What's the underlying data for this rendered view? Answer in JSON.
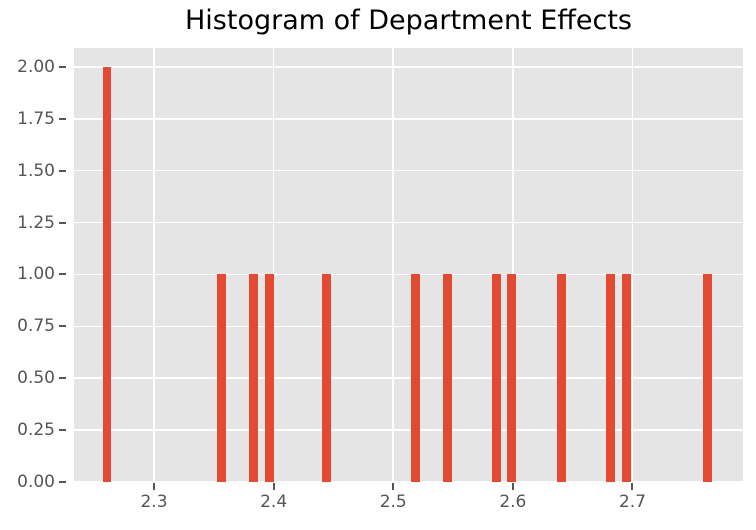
{
  "title": "Histogram of Department Effects",
  "colors": {
    "bar": "#E24A33",
    "plot_background": "#E5E5E5",
    "gridline": "#FFFFFF",
    "tick_text": "#555555",
    "tick_mark": "#555555",
    "title_text": "#000000",
    "figure_background": "#FFFFFF"
  },
  "chart_data": {
    "type": "bar",
    "subtype": "histogram",
    "title": "Histogram of Department Effects",
    "xlabel": "",
    "ylabel": "",
    "x": [
      2.2607,
      2.3565,
      2.3829,
      2.3963,
      2.4442,
      2.5185,
      2.5452,
      2.586,
      2.599,
      2.6404,
      2.6816,
      2.695,
      2.7629
    ],
    "values": [
      2,
      1,
      1,
      1,
      1,
      1,
      1,
      1,
      1,
      1,
      1,
      1,
      1
    ],
    "bin_width": 0.0075,
    "xlim": [
      2.2331,
      2.7924
    ],
    "ylim": [
      0,
      2.0915
    ],
    "xticks": [
      2.3,
      2.4,
      2.5,
      2.6,
      2.7
    ],
    "xtick_labels": [
      "2.3",
      "2.4",
      "2.5",
      "2.6",
      "2.7"
    ],
    "yticks": [
      0.0,
      0.25,
      0.5,
      0.75,
      1.0,
      1.25,
      1.5,
      1.75,
      2.0
    ],
    "ytick_labels": [
      "0.00",
      "0.25",
      "0.50",
      "0.75",
      "1.00",
      "1.25",
      "1.50",
      "1.75",
      "2.00"
    ],
    "grid": true,
    "legend": false
  }
}
